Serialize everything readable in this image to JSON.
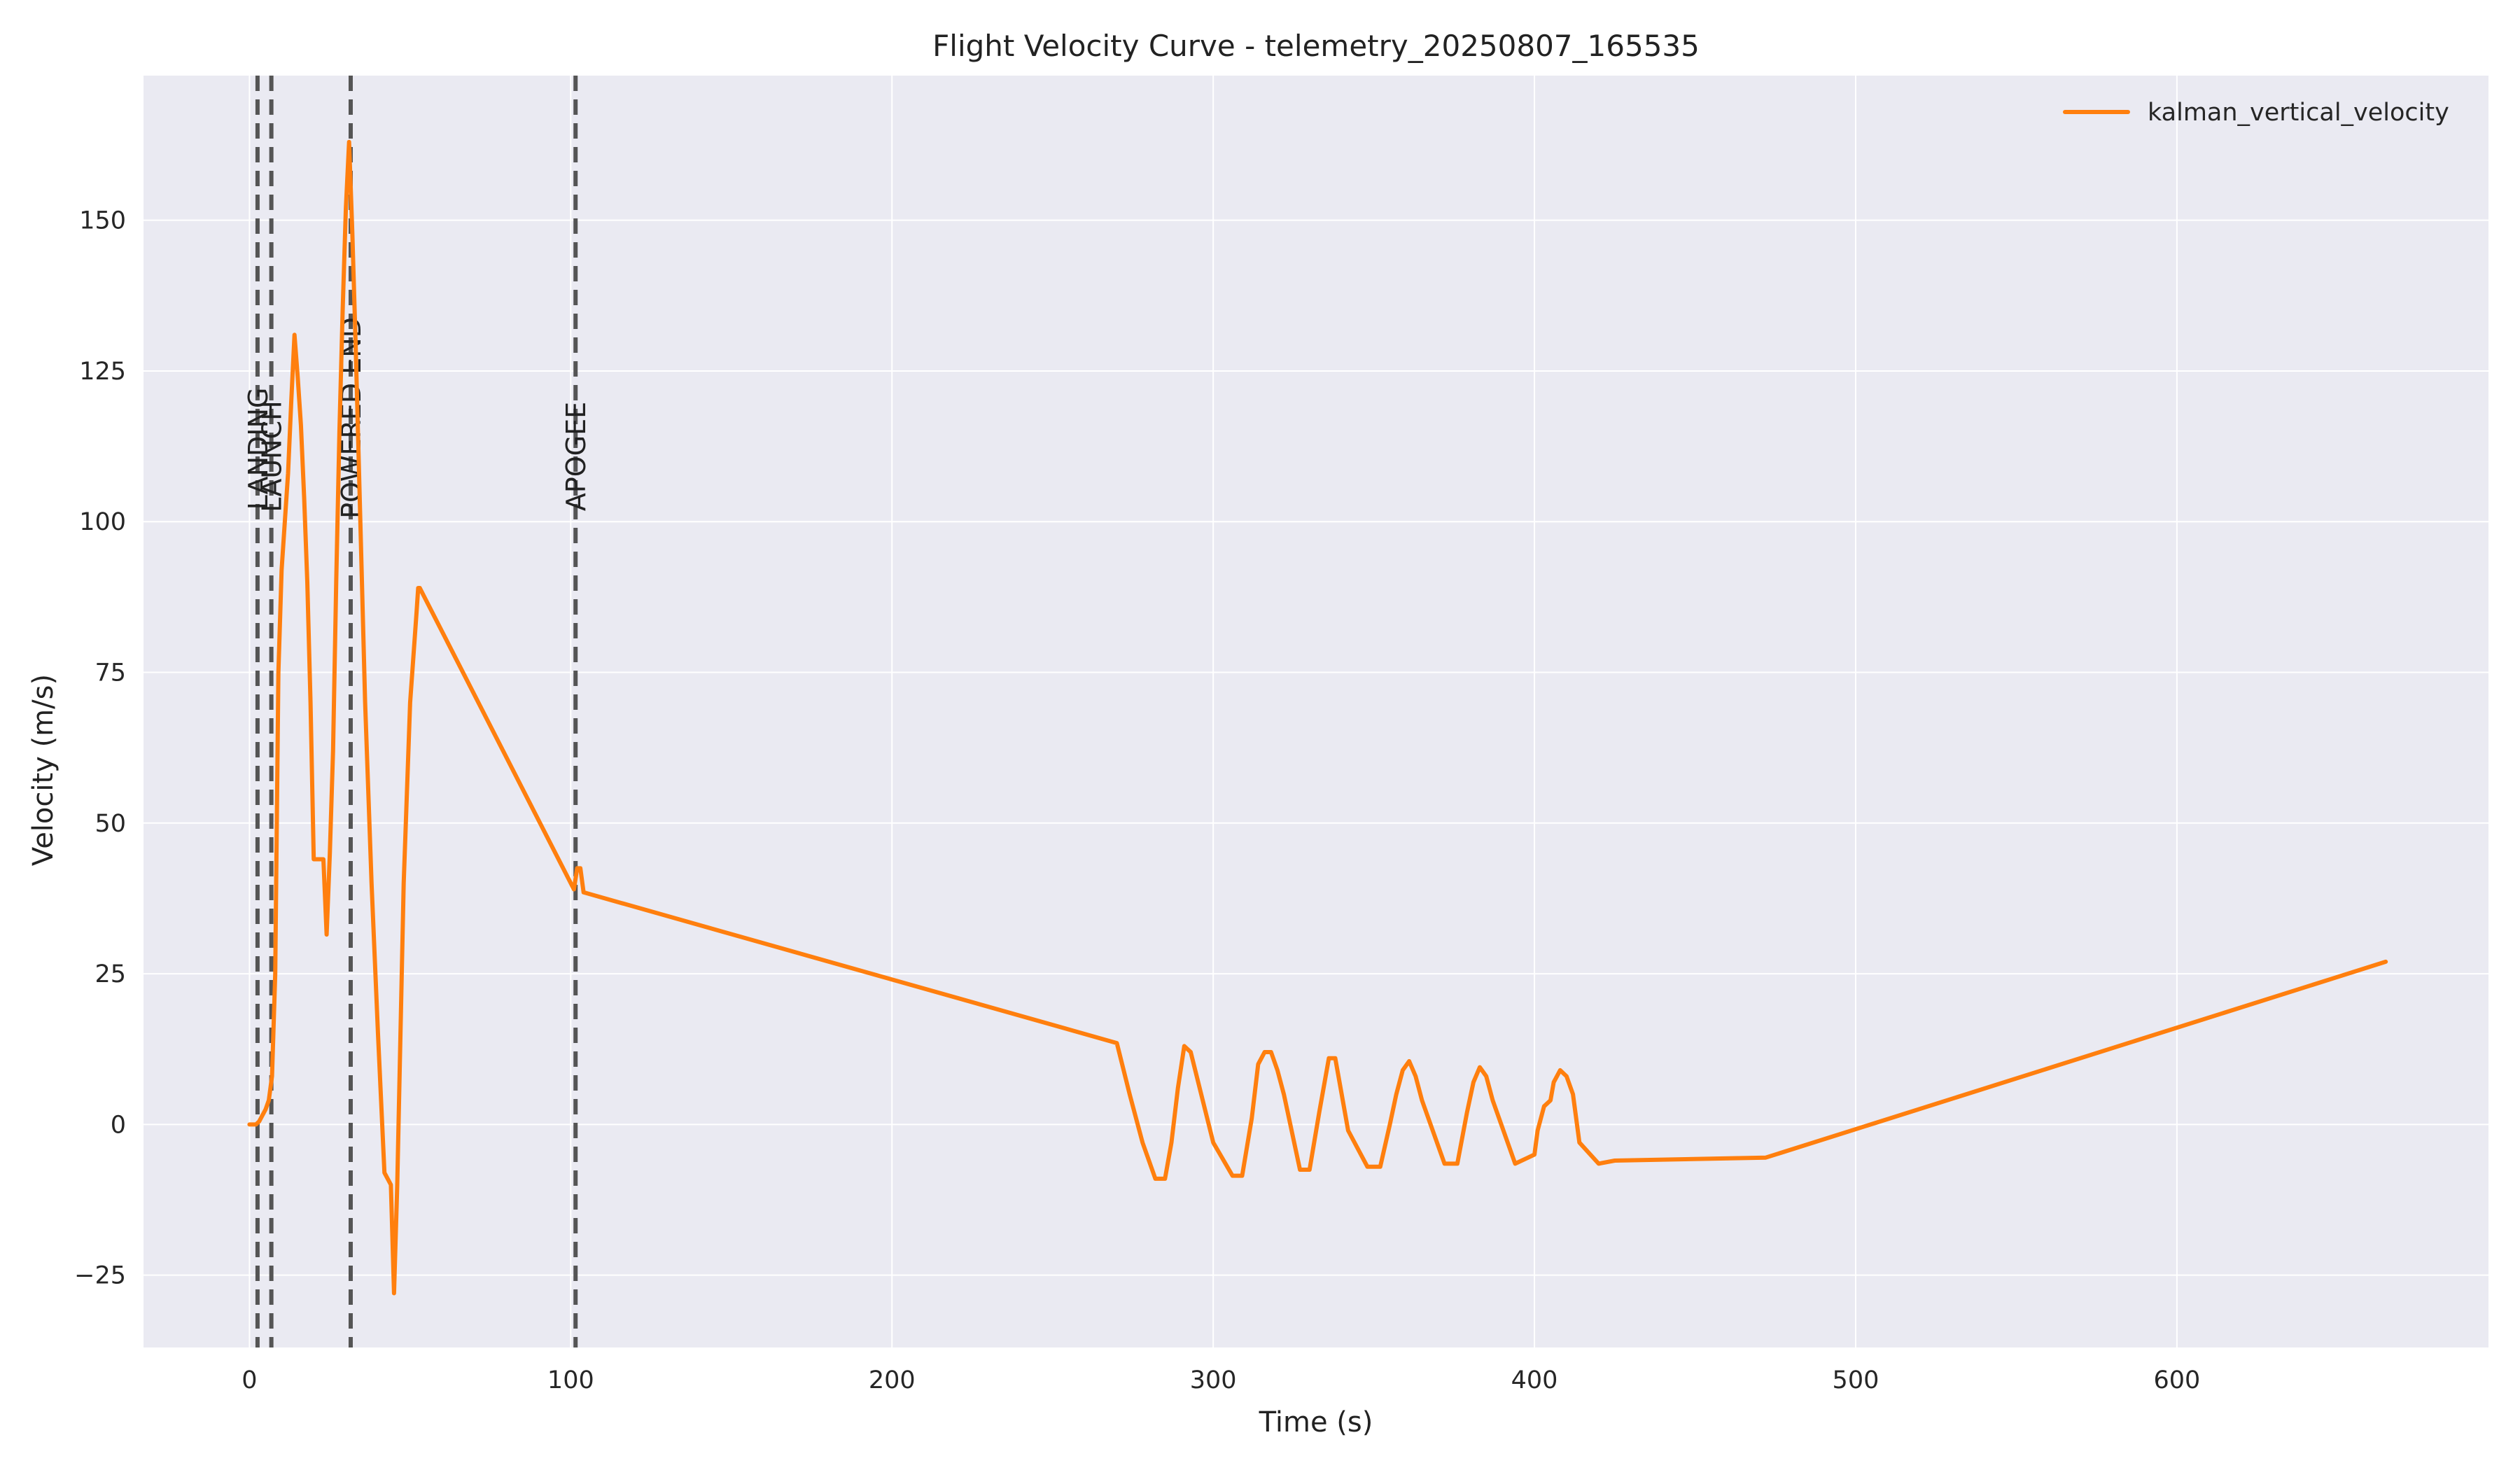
{
  "chart_data": {
    "type": "line",
    "title": "Flight Velocity Curve - telemetry_20250807_165535",
    "xlabel": "Time (s)",
    "ylabel": "Velocity (m/s)",
    "xlim": [
      -33,
      697
    ],
    "ylim": [
      -37,
      174
    ],
    "xticks": [
      0,
      100,
      200,
      300,
      400,
      500,
      600
    ],
    "yticks": [
      -25,
      0,
      25,
      50,
      75,
      100,
      125,
      150
    ],
    "tick_labels_x": [
      "0",
      "100",
      "200",
      "300",
      "400",
      "500",
      "600"
    ],
    "tick_labels_y": [
      "−25",
      "0",
      "25",
      "50",
      "75",
      "100",
      "125",
      "150"
    ],
    "grid": true,
    "legend_position": "top-right",
    "colors": {
      "background": "#eaeaf2",
      "grid": "#ffffff",
      "series": "#ff7f0e",
      "event_line": "#555555"
    },
    "events": [
      {
        "label": "LANDING",
        "x": 2.5
      },
      {
        "label": "LAUNCH",
        "x": 6.8
      },
      {
        "label": "POWERED END",
        "x": 31.5
      },
      {
        "label": "APOGEE",
        "x": 101.5
      }
    ],
    "series": [
      {
        "name": "kalman_vertical_velocity",
        "color": "#ff7f0e",
        "x": [
          0,
          2,
          3,
          5,
          6,
          7,
          8,
          9,
          10,
          11,
          12,
          13,
          14,
          15,
          16,
          17,
          18,
          19,
          20,
          23,
          24,
          25,
          26,
          27,
          28,
          29,
          30,
          31,
          32,
          33,
          34,
          36,
          38,
          40,
          42,
          44,
          45,
          46,
          47,
          48,
          50,
          52,
          52.5,
          53,
          101,
          102,
          103,
          104,
          270,
          274,
          278,
          282,
          285,
          287,
          289,
          291,
          293,
          300,
          306,
          309,
          312,
          314,
          316,
          318,
          320,
          322,
          327,
          330,
          333,
          336,
          338,
          340,
          342,
          348,
          352,
          355,
          357,
          359,
          361,
          363,
          365,
          372,
          376,
          379,
          381,
          383,
          385,
          387,
          389,
          394,
          400,
          401,
          403,
          405,
          406,
          408,
          410,
          412,
          414,
          420,
          425,
          472,
          665
        ],
        "y": [
          0,
          0,
          0.5,
          2.5,
          4,
          8,
          25,
          75,
          92,
          100,
          108,
          120,
          131,
          124,
          116,
          104,
          90,
          70,
          44,
          44,
          31.5,
          45,
          62,
          90,
          115,
          135,
          152,
          163,
          148,
          130,
          110,
          70,
          40,
          15,
          -8,
          -10,
          -28,
          -10,
          15,
          40,
          70,
          85,
          89,
          89,
          39,
          42.5,
          42.5,
          38.5,
          13.5,
          5,
          -3,
          -9,
          -9,
          -3,
          6,
          13,
          12,
          -3,
          -8.5,
          -8.5,
          1,
          10,
          12,
          12,
          9,
          5,
          -7.5,
          -7.5,
          2,
          11,
          11,
          5,
          -1,
          -7,
          -7,
          0,
          5,
          9,
          10.5,
          8,
          4,
          -6.5,
          -6.5,
          2,
          7,
          9.5,
          8,
          4,
          1,
          -6.5,
          -5,
          -1,
          3,
          4,
          7,
          9,
          8,
          5,
          -3,
          -6.5,
          -6,
          -5.5,
          27
        ]
      }
    ]
  }
}
